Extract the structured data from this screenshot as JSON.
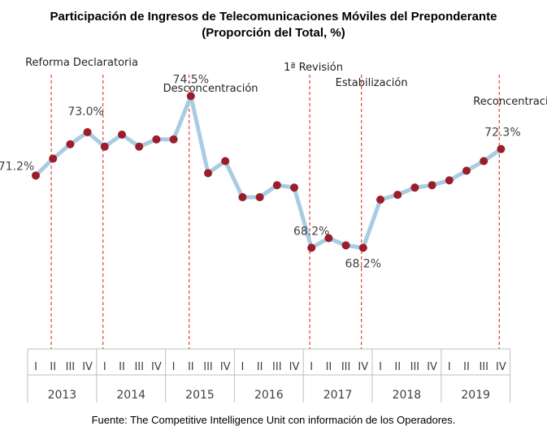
{
  "chart_data": {
    "type": "line",
    "title": "Participación de Ingresos de Telecomunicaciones Móviles del Preponderante",
    "subtitle": "(Proporción del Total, %)",
    "years": [
      "2013",
      "2014",
      "2015",
      "2016",
      "2017",
      "2018",
      "2019"
    ],
    "quarter_labels": [
      "I",
      "II",
      "III",
      "IV"
    ],
    "categories": [
      "2013-I",
      "2013-II",
      "2013-III",
      "2013-IV",
      "2014-I",
      "2014-II",
      "2014-III",
      "2014-IV",
      "2015-I",
      "2015-II",
      "2015-III",
      "2015-IV",
      "2016-I",
      "2016-II",
      "2016-III",
      "2016-IV",
      "2017-I",
      "2017-II",
      "2017-III",
      "2017-IV",
      "2018-I",
      "2018-II",
      "2018-III",
      "2018-IV",
      "2019-I",
      "2019-II",
      "2019-III",
      "2019-IV"
    ],
    "values": [
      71.2,
      71.9,
      72.5,
      73.0,
      72.4,
      72.9,
      72.4,
      72.7,
      72.7,
      74.5,
      71.3,
      71.8,
      70.3,
      70.3,
      70.8,
      70.7,
      68.2,
      68.6,
      68.3,
      68.2,
      70.2,
      70.4,
      70.7,
      70.8,
      71.0,
      71.4,
      71.8,
      72.3
    ],
    "ylim": [
      64.0,
      76.4
    ],
    "data_labels": [
      {
        "index": 0,
        "text": "71.2%"
      },
      {
        "index": 3,
        "text": "73.0%"
      },
      {
        "index": 9,
        "text": "74.5%"
      },
      {
        "index": 16,
        "text": "68.2%"
      },
      {
        "index": 19,
        "text": "68.2%"
      },
      {
        "index": 27,
        "text": "72.3%"
      }
    ],
    "events": [
      {
        "label": "Reforma Declaratoria",
        "after_index": 0
      },
      {
        "label": "",
        "after_index": 3
      },
      {
        "label": "Desconcentración",
        "after_index": 8
      },
      {
        "label": "1ª Revisión",
        "after_index": 15
      },
      {
        "label": "Estabilización",
        "after_index": 18
      },
      {
        "label": "Reconcentración",
        "after_index": 26
      }
    ],
    "source": "Fuente: The Competitive Intelligence Unit con información de los Operadores.",
    "colors": {
      "line": "#a9cce3",
      "marker": "#9b1c2a",
      "event_line": "#e0413a",
      "axis": "#bfbfbf",
      "text": "#404040"
    }
  }
}
